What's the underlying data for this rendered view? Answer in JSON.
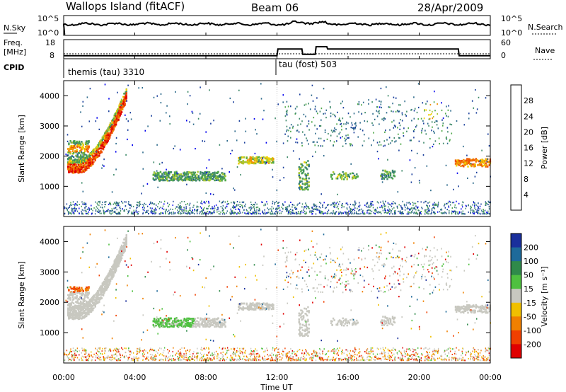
{
  "header": {
    "site": "Wallops Island (fitACF)",
    "beam": "Beam 06",
    "date": "28/Apr/2009"
  },
  "noise_panel": {
    "left_label": "N.Sky",
    "left_ticks": [
      "10^5",
      "10^0"
    ],
    "right_label": "N.Search",
    "right_ticks": [
      "10^5",
      "10^0"
    ]
  },
  "freq_panel": {
    "left_label_1": "Freq.",
    "left_label_2": "[MHz]",
    "left_ticks": [
      "18",
      "8"
    ],
    "right_label": "Nave",
    "right_ticks": [
      "60",
      "0"
    ],
    "freq_steps": [
      [
        0,
        9.7
      ],
      [
        12,
        9.7
      ],
      [
        12.05,
        13.5
      ],
      [
        13.4,
        13.5
      ],
      [
        13.45,
        10.5
      ],
      [
        14.15,
        10.5
      ],
      [
        14.2,
        14.8
      ],
      [
        14.8,
        14.8
      ],
      [
        14.85,
        13.5
      ],
      [
        22.2,
        13.5
      ],
      [
        22.25,
        9.7
      ],
      [
        24,
        9.7
      ]
    ]
  },
  "cpid": {
    "label": "CPID",
    "segments": [
      {
        "text": "themis (tau) 3310",
        "start": 0
      },
      {
        "text": "tau (fost) 503",
        "start": 12
      }
    ]
  },
  "colors": {
    "power_scale": [
      "#0000ee",
      "#1a3f9c",
      "#2e6b8c",
      "#3f8a6a",
      "#4fa84a",
      "#a8c830",
      "#f0d000",
      "#f09000",
      "#f05000",
      "#e00000"
    ],
    "velocity_scale": [
      "#1a2f9c",
      "#1e6a9a",
      "#2f8a4a",
      "#4fc040",
      "#c8c8c0",
      "#c8c8c0",
      "#f0c000",
      "#f08000",
      "#f04000",
      "#e00000"
    ]
  },
  "chart_data": [
    {
      "type": "heatmap",
      "name": "power",
      "ylabel": "Slant Range [km]",
      "yticks": [
        "1000",
        "2000",
        "3000",
        "4000"
      ],
      "ylim": [
        0,
        4500
      ],
      "xlim": [
        0,
        24
      ],
      "colorbar": {
        "label": "Power [dB]",
        "ticks": [
          "4",
          "8",
          "12",
          "16",
          "20",
          "24",
          "28"
        ]
      },
      "echo_regions": [
        {
          "t0": 0.2,
          "t1": 3.5,
          "r0": 1300,
          "r1": 3300,
          "level": 0.55,
          "note": "early arc"
        },
        {
          "t0": 5.0,
          "t1": 9.0,
          "r0": 1150,
          "r1": 1450,
          "level": 0.4
        },
        {
          "t0": 9.8,
          "t1": 11.8,
          "r0": 1700,
          "r1": 1950,
          "level": 0.55
        },
        {
          "t0": 13.2,
          "t1": 13.8,
          "r0": 850,
          "r1": 1850,
          "level": 0.45
        },
        {
          "t0": 15.0,
          "t1": 16.5,
          "r0": 1200,
          "r1": 1500,
          "level": 0.45
        },
        {
          "t0": 17.8,
          "t1": 18.6,
          "r0": 1200,
          "r1": 1550,
          "level": 0.45
        },
        {
          "t0": 22.0,
          "t1": 24.0,
          "r0": 1600,
          "r1": 1900,
          "level": 0.6
        },
        {
          "t0": 13.0,
          "t1": 21.5,
          "r0": 2300,
          "r1": 3700,
          "level": 0.3,
          "note": "sparse"
        }
      ]
    },
    {
      "type": "heatmap",
      "name": "velocity",
      "ylabel": "Slant Range [km]",
      "yticks": [
        "1000",
        "2000",
        "3000",
        "4000"
      ],
      "ylim": [
        0,
        4500
      ],
      "xlim": [
        0,
        24
      ],
      "xticks": [
        "00:00",
        "04:00",
        "08:00",
        "12:00",
        "16:00",
        "20:00",
        "00:00"
      ],
      "xlabel": "Time UT",
      "colorbar": {
        "label": "Velocity [m s⁻¹]",
        "ticks": [
          "200",
          "100",
          "50",
          "15",
          "-15",
          "-50",
          "-100",
          "-200"
        ]
      }
    }
  ]
}
